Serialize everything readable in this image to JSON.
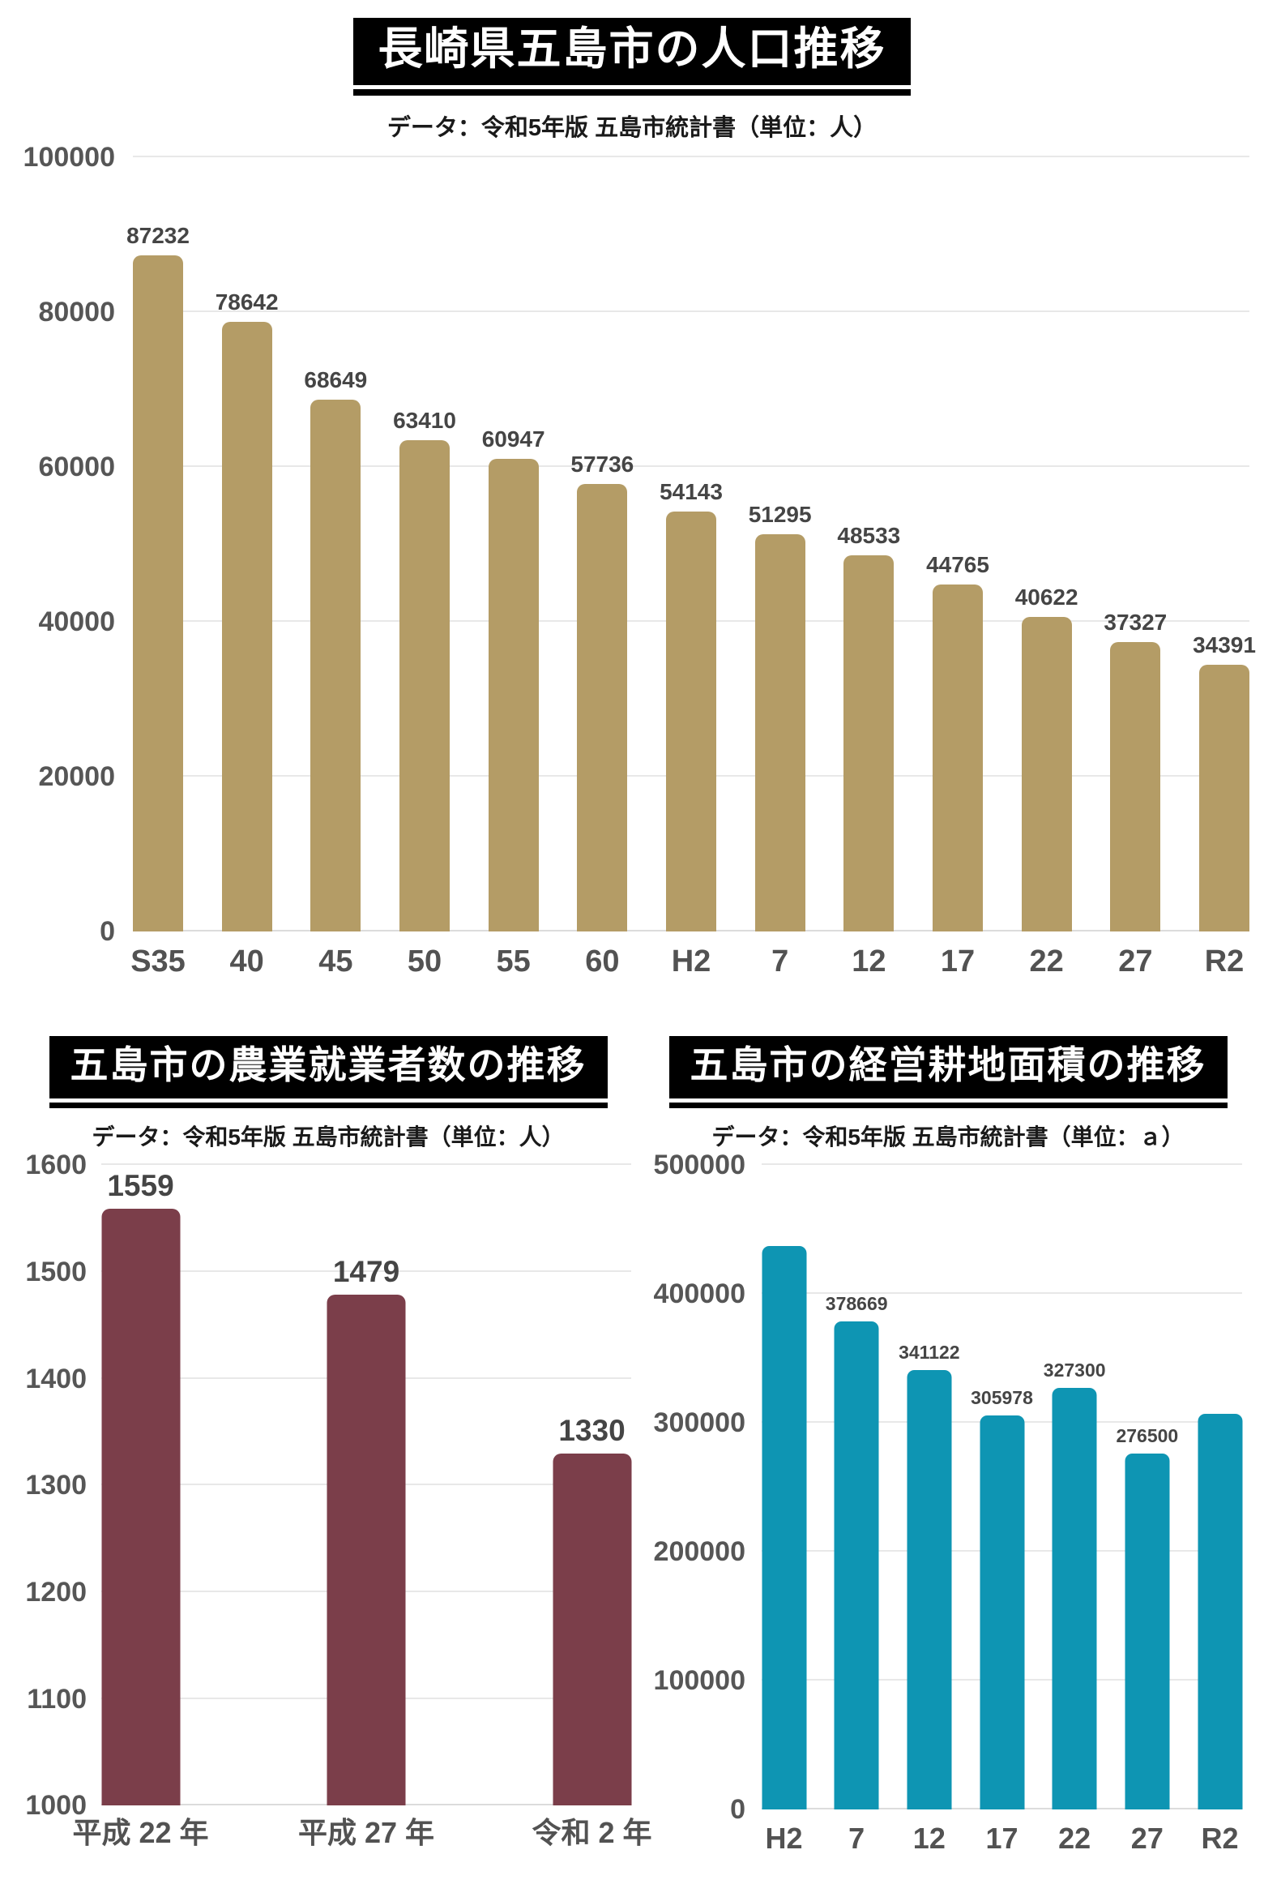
{
  "chart_data": [
    {
      "type": "bar",
      "title": "長崎県五島市の人口推移",
      "subtitle": "データ：令和5年版 五島市統計書（単位：人）",
      "bar_color": "#b49c66",
      "categories": [
        "S35",
        "40",
        "45",
        "50",
        "55",
        "60",
        "H2",
        "7",
        "12",
        "17",
        "22",
        "27",
        "R2"
      ],
      "values": [
        87232,
        78642,
        68649,
        63410,
        60947,
        57736,
        54143,
        51295,
        48533,
        44765,
        40622,
        37327,
        34391
      ],
      "value_labels": [
        "87232",
        "78642",
        "68649",
        "63410",
        "60947",
        "57736",
        "54143",
        "51295",
        "48533",
        "44765",
        "40622",
        "37327",
        "34391"
      ],
      "ylim": [
        0,
        100000
      ],
      "ytick_values": [
        0,
        20000,
        40000,
        60000,
        80000,
        100000
      ],
      "ytick_labels": [
        "0",
        "20000",
        "40000",
        "60000",
        "80000",
        "100000"
      ],
      "grid": true,
      "legend": "none"
    },
    {
      "type": "bar",
      "title": "五島市の農業就業者数の推移",
      "subtitle": "データ：令和5年版 五島市統計書（単位：人）",
      "bar_color": "#7b3e4a",
      "categories": [
        "平成 22 年",
        "平成 27 年",
        "令和 2 年"
      ],
      "values": [
        1559,
        1479,
        1330
      ],
      "value_labels": [
        "1559",
        "1479",
        "1330"
      ],
      "ylim": [
        1000,
        1600
      ],
      "ytick_values": [
        1000,
        1100,
        1200,
        1300,
        1400,
        1500,
        1600
      ],
      "ytick_labels": [
        "1000",
        "1100",
        "1200",
        "1300",
        "1400",
        "1500",
        "1600"
      ],
      "grid": true,
      "legend": "none"
    },
    {
      "type": "bar",
      "title": "五島市の経営耕地面積の推移",
      "subtitle": "データ：令和5年版 五島市統計書（単位：ａ）",
      "bar_color": "#0e95b3",
      "categories": [
        "H2",
        "7",
        "12",
        "17",
        "22",
        "27",
        "R2"
      ],
      "values": [
        437000,
        378669,
        341122,
        305978,
        327300,
        276500,
        307000
      ],
      "value_labels": [
        "",
        "378669",
        "341122",
        "305978",
        "327300",
        "276500",
        ""
      ],
      "ylim": [
        0,
        500000
      ],
      "ytick_values": [
        0,
        100000,
        200000,
        300000,
        400000,
        500000
      ],
      "ytick_labels": [
        "0",
        "100000",
        "200000",
        "300000",
        "400000",
        "500000"
      ],
      "grid": true,
      "legend": "none"
    }
  ]
}
